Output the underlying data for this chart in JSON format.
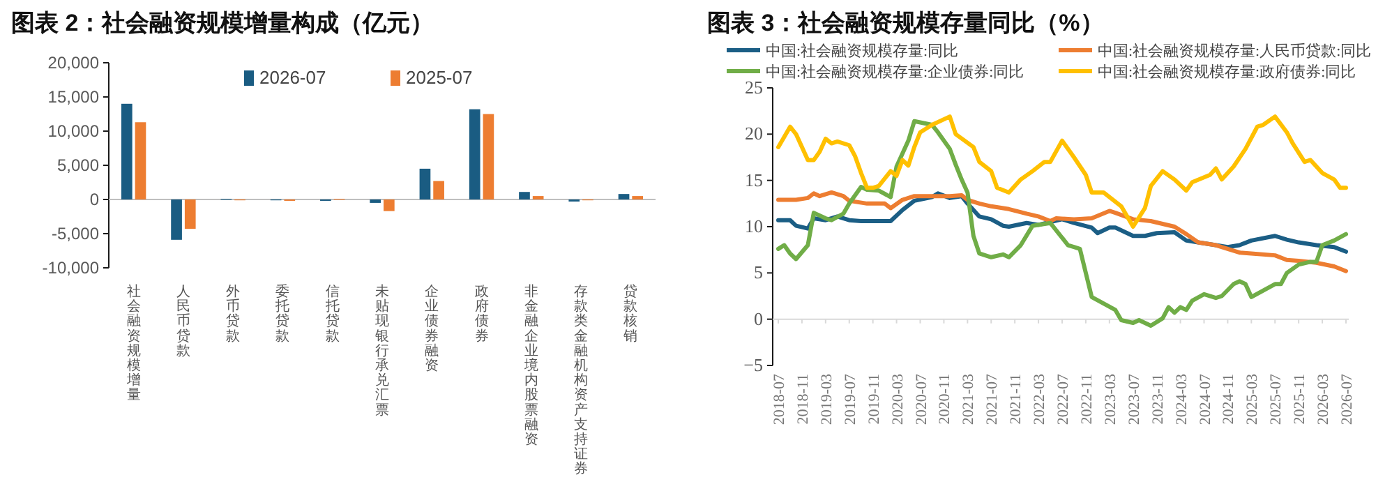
{
  "chart_data": [
    {
      "type": "bar",
      "title": "图表 2：社会融资规模增量构成（亿元）",
      "legend": "top",
      "categories": [
        "社会融资规模增量",
        "人民币贷款",
        "外币贷款",
        "委托贷款",
        "信托贷款",
        "未贴现银行承兑汇票",
        "企业债券融资",
        "政府债券",
        "非金融企业境内股票融资",
        "存款类金融机构资产支持证券",
        "贷款核销"
      ],
      "series": [
        {
          "name": "2026-07",
          "color": "#1a5c82",
          "values": [
            14000,
            -5900,
            100,
            0,
            -200,
            -500,
            4500,
            13200,
            1100,
            -300,
            800
          ]
        },
        {
          "name": "2025-07",
          "color": "#ed7d31",
          "values": [
            11300,
            -4300,
            0,
            -200,
            100,
            -1700,
            2700,
            12500,
            500,
            0,
            500
          ]
        }
      ],
      "ylim": [
        -10000,
        20000
      ],
      "yticks": [
        {
          "value": -10000,
          "label": "-10,000"
        },
        {
          "value": -5000,
          "label": "-5,000"
        },
        0,
        {
          "value": 5000,
          "label": "5,000"
        },
        {
          "value": 10000,
          "label": "10,000"
        },
        {
          "value": 15000,
          "label": "15,000"
        },
        {
          "value": 20000,
          "label": "20,000"
        }
      ]
    },
    {
      "type": "line",
      "title": "图表 3：社会融资规模存量同比（%）",
      "legend": "top",
      "series": [
        {
          "name": "中国:社会融资规模存量:同比",
          "color": "#1b5e85",
          "x": [
            "2018-07",
            "2018-09",
            "2018-10",
            "2018-12",
            "2019-01",
            "2019-03",
            "2019-05",
            "2019-07",
            "2019-09",
            "2019-12",
            "2020-02",
            "2020-04",
            "2020-06",
            "2020-09",
            "2020-10",
            "2020-12",
            "2021-02",
            "2021-03",
            "2021-05",
            "2021-07",
            "2021-09",
            "2021-10",
            "2022-01",
            "2022-03",
            "2022-05",
            "2022-07",
            "2022-09",
            "2022-12",
            "2023-01",
            "2023-03",
            "2023-04",
            "2023-07",
            "2023-09",
            "2023-11",
            "2024-02",
            "2024-04",
            "2024-06",
            "2024-09",
            "2024-11",
            "2025-01",
            "2025-03",
            "2025-07",
            "2025-09",
            "2025-11",
            "2026-02",
            "2026-05",
            "2026-07"
          ],
          "values": [
            10.7,
            10.7,
            10.1,
            9.8,
            10.9,
            10.7,
            11.1,
            10.7,
            10.6,
            10.6,
            10.6,
            11.8,
            12.8,
            13.2,
            13.6,
            13.1,
            13.3,
            12.5,
            11.1,
            10.8,
            10.1,
            10.0,
            10.4,
            10.2,
            10.5,
            10.8,
            10.4,
            9.9,
            9.3,
            9.9,
            9.9,
            9.0,
            9.0,
            9.3,
            9.4,
            8.5,
            8.3,
            8.0,
            7.8,
            8.0,
            8.5,
            9.0,
            8.6,
            8.3,
            8.0,
            7.8,
            7.3
          ]
        },
        {
          "name": "中国:社会融资规模存量:人民币贷款:同比",
          "color": "#ed7d31",
          "x": [
            "2018-07",
            "2018-10",
            "2018-12",
            "2019-01",
            "2019-02",
            "2019-04",
            "2019-06",
            "2019-07",
            "2019-10",
            "2020-01",
            "2020-02",
            "2020-04",
            "2020-06",
            "2020-09",
            "2020-12",
            "2021-02",
            "2021-03",
            "2021-05",
            "2021-07",
            "2021-10",
            "2022-01",
            "2022-03",
            "2022-05",
            "2022-06",
            "2022-09",
            "2022-12",
            "2023-03",
            "2023-04",
            "2023-07",
            "2023-10",
            "2024-02",
            "2024-04",
            "2024-06",
            "2024-09",
            "2024-11",
            "2025-01",
            "2025-03",
            "2025-07",
            "2025-09",
            "2025-11",
            "2026-02",
            "2026-05",
            "2026-07"
          ],
          "values": [
            12.9,
            12.9,
            13.1,
            13.6,
            13.3,
            13.7,
            13.3,
            12.8,
            12.5,
            12.5,
            12.0,
            12.9,
            13.3,
            13.3,
            13.3,
            13.4,
            12.9,
            12.5,
            12.2,
            11.9,
            11.4,
            11.1,
            10.6,
            10.9,
            10.8,
            10.9,
            11.7,
            11.5,
            10.8,
            10.6,
            10.0,
            9.2,
            8.3,
            8.0,
            7.6,
            7.2,
            7.1,
            6.9,
            6.4,
            6.3,
            6.1,
            5.7,
            5.2
          ]
        },
        {
          "name": "中国:社会融资规模存量:企业债券:同比",
          "color": "#70ad47",
          "x": [
            "2018-07",
            "2018-08",
            "2018-09",
            "2018-10",
            "2018-12",
            "2019-01",
            "2019-03",
            "2019-04",
            "2019-06",
            "2019-07",
            "2019-09",
            "2019-10",
            "2019-12",
            "2020-02",
            "2020-03",
            "2020-05",
            "2020-06",
            "2020-09",
            "2020-10",
            "2020-12",
            "2021-01",
            "2021-02",
            "2021-03",
            "2021-04",
            "2021-05",
            "2021-07",
            "2021-09",
            "2021-10",
            "2021-12",
            "2022-02",
            "2022-05",
            "2022-08",
            "2022-09",
            "2022-10",
            "2022-12",
            "2023-02",
            "2023-04",
            "2023-05",
            "2023-07",
            "2023-08",
            "2023-10",
            "2023-12",
            "2024-01",
            "2024-02",
            "2024-03",
            "2024-04",
            "2024-05",
            "2024-07",
            "2024-09",
            "2024-10",
            "2024-12",
            "2025-01",
            "2025-02",
            "2025-03",
            "2025-05",
            "2025-07",
            "2025-08",
            "2025-09",
            "2025-11",
            "2026-01",
            "2026-02",
            "2026-03",
            "2026-05",
            "2026-07"
          ],
          "values": [
            7.6,
            8.0,
            7.1,
            6.5,
            8.0,
            11.5,
            10.9,
            10.7,
            11.4,
            12.5,
            14.3,
            14.0,
            13.9,
            13.2,
            16.5,
            19.3,
            21.4,
            21.0,
            20.2,
            18.4,
            16.7,
            15.1,
            13.7,
            9.0,
            7.1,
            6.7,
            7.0,
            6.7,
            8.0,
            10.1,
            10.4,
            8.0,
            7.8,
            7.6,
            2.4,
            1.7,
            1.0,
            -0.1,
            -0.4,
            -0.1,
            -0.7,
            0.1,
            1.3,
            0.7,
            1.3,
            1.0,
            2.0,
            2.7,
            2.3,
            2.5,
            3.8,
            4.1,
            3.8,
            2.4,
            3.1,
            3.8,
            3.8,
            5.0,
            5.9,
            6.2,
            6.2,
            8.0,
            8.5,
            9.2
          ]
        },
        {
          "name": "中国:社会融资规模存量:政府债券:同比",
          "color": "#ffc000",
          "x": [
            "2018-07",
            "2018-09",
            "2018-10",
            "2018-12",
            "2019-01",
            "2019-02",
            "2019-03",
            "2019-04",
            "2019-05",
            "2019-07",
            "2019-08",
            "2019-09",
            "2019-10",
            "2019-11",
            "2019-12",
            "2020-02",
            "2020-03",
            "2020-04",
            "2020-05",
            "2020-06",
            "2020-07",
            "2020-09",
            "2020-12",
            "2021-01",
            "2021-04",
            "2021-05",
            "2021-07",
            "2021-08",
            "2021-10",
            "2021-12",
            "2022-02",
            "2022-04",
            "2022-05",
            "2022-07",
            "2022-09",
            "2022-11",
            "2022-12",
            "2023-02",
            "2023-05",
            "2023-07",
            "2023-09",
            "2023-10",
            "2023-12",
            "2024-02",
            "2024-04",
            "2024-05",
            "2024-08",
            "2024-09",
            "2024-10",
            "2024-12",
            "2025-02",
            "2025-04",
            "2025-05",
            "2025-07",
            "2025-09",
            "2025-10",
            "2025-12",
            "2026-01",
            "2026-03",
            "2026-05",
            "2026-06",
            "2026-07"
          ],
          "values": [
            18.6,
            20.8,
            20.0,
            17.2,
            17.2,
            18.1,
            19.5,
            19.0,
            19.2,
            18.8,
            17.6,
            15.8,
            14.2,
            14.2,
            14.4,
            16.0,
            15.5,
            17.2,
            16.6,
            18.6,
            20.2,
            21.0,
            21.9,
            20.0,
            18.6,
            17.0,
            16.0,
            14.2,
            13.7,
            15.1,
            16.0,
            17.0,
            17.0,
            19.3,
            17.5,
            15.6,
            13.7,
            13.7,
            12.2,
            10.0,
            12.0,
            14.4,
            16.0,
            15.1,
            13.9,
            14.8,
            15.6,
            16.3,
            15.1,
            16.5,
            18.4,
            20.8,
            21.0,
            21.9,
            20.2,
            19.0,
            17.0,
            17.2,
            15.8,
            15.1,
            14.2,
            14.2
          ]
        }
      ],
      "xlim": [
        "2018-07",
        "2026-07"
      ],
      "xticks": [
        "2018-07",
        "2018-11",
        "2019-03",
        "2019-07",
        "2019-11",
        "2020-03",
        "2020-07",
        "2020-11",
        "2021-03",
        "2021-07",
        "2021-11",
        "2022-03",
        "2022-07",
        "2022-11",
        "2023-03",
        "2023-07",
        "2023-11",
        "2024-03",
        "2024-07",
        "2024-11",
        "2025-03",
        "2025-07",
        "2025-11",
        "2026-03",
        "2026-07"
      ],
      "ylim": [
        -5,
        25
      ],
      "yticks": [
        {
          "value": -5,
          "label": "−5"
        },
        0,
        5,
        10,
        15,
        20,
        25
      ]
    }
  ]
}
